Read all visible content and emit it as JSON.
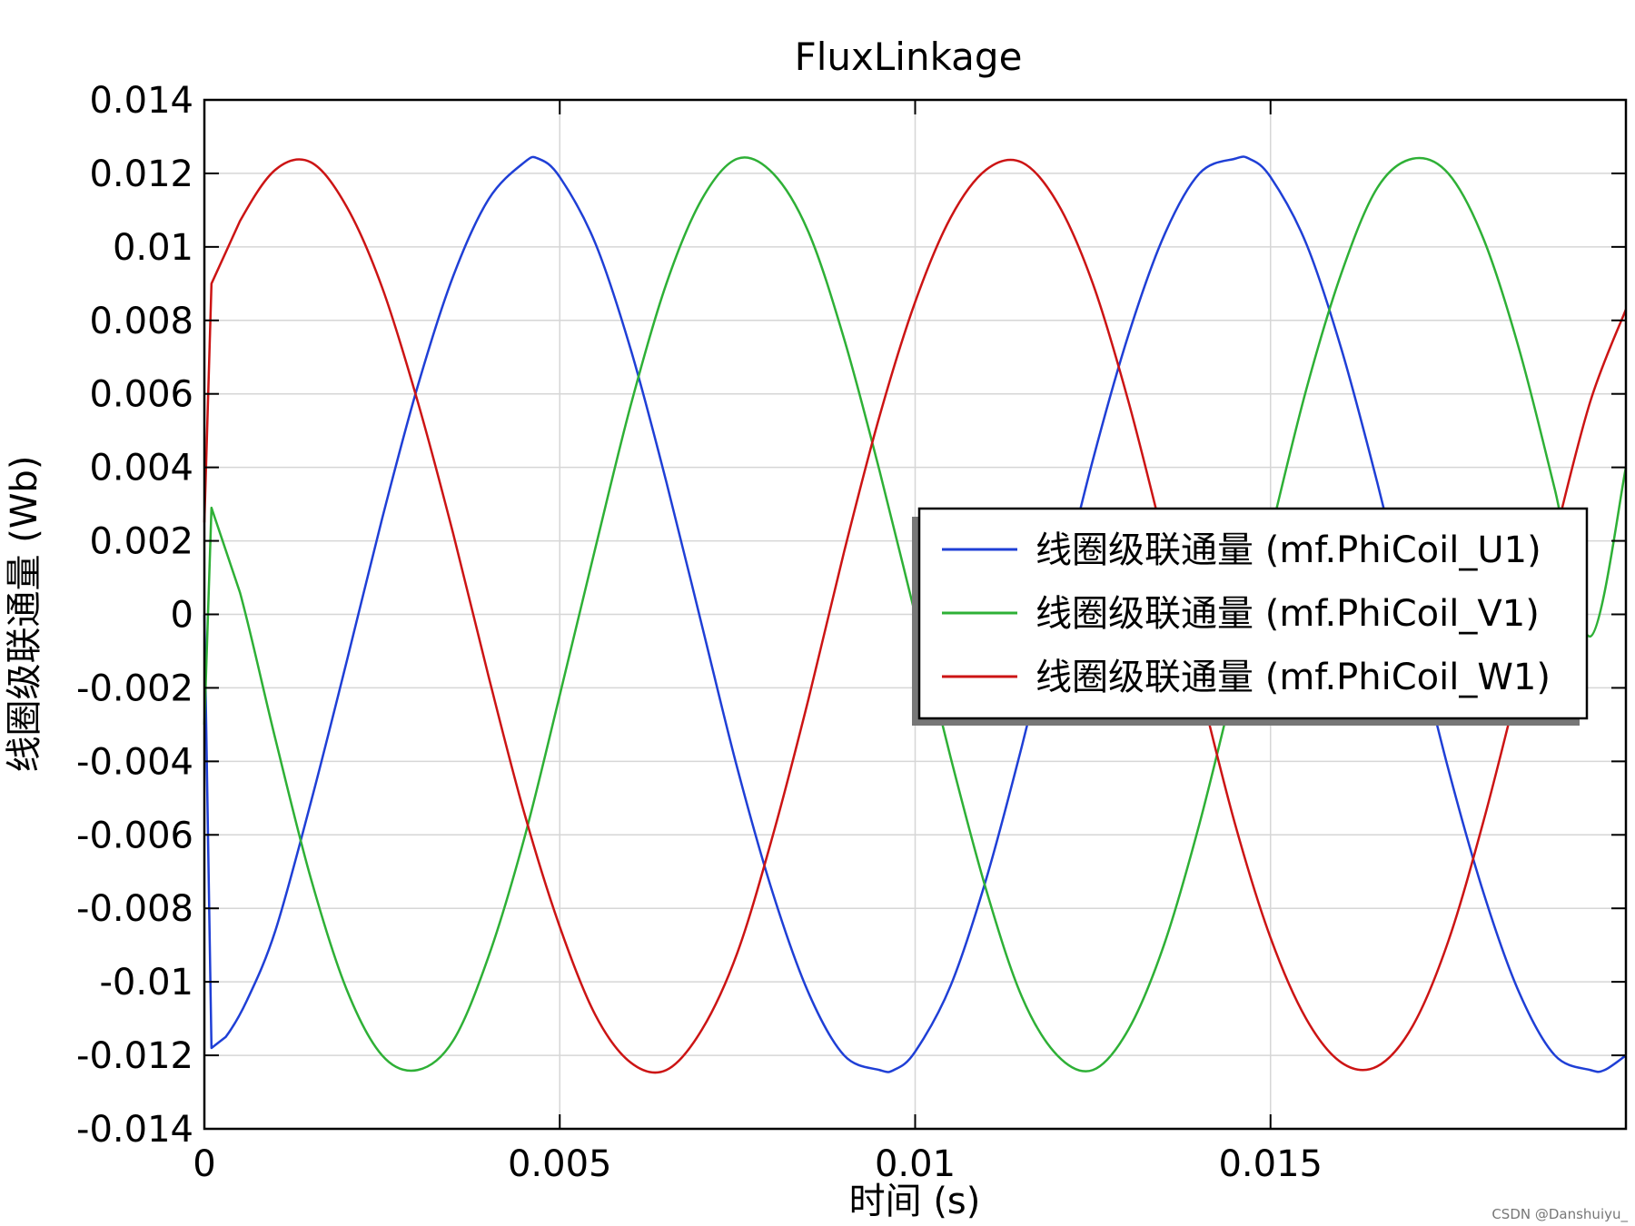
{
  "chart_data": {
    "type": "line",
    "title": "FluxLinkage",
    "xlabel": "时间 (s)",
    "ylabel": "线圈级联通量 (Wb)",
    "xlim": [
      0,
      0.02
    ],
    "ylim": [
      -0.014,
      0.014
    ],
    "x_ticks": [
      {
        "value": 0,
        "label": "0"
      },
      {
        "value": 0.005,
        "label": "0.005"
      },
      {
        "value": 0.01,
        "label": "0.01"
      },
      {
        "value": 0.015,
        "label": "0.015"
      }
    ],
    "y_ticks": [
      {
        "value": 0.014,
        "label": "0.014"
      },
      {
        "value": 0.012,
        "label": "0.012"
      },
      {
        "value": 0.01,
        "label": "0.01"
      },
      {
        "value": 0.008,
        "label": "0.008"
      },
      {
        "value": 0.006,
        "label": "0.006"
      },
      {
        "value": 0.004,
        "label": "0.004"
      },
      {
        "value": 0.002,
        "label": "0.002"
      },
      {
        "value": 0,
        "label": "0"
      },
      {
        "value": -0.002,
        "label": "-0.002"
      },
      {
        "value": -0.004,
        "label": "-0.004"
      },
      {
        "value": -0.006,
        "label": "-0.006"
      },
      {
        "value": -0.008,
        "label": "-0.008"
      },
      {
        "value": -0.01,
        "label": "-0.01"
      },
      {
        "value": -0.012,
        "label": "-0.012"
      },
      {
        "value": -0.014,
        "label": "-0.014"
      }
    ],
    "grid": true,
    "legend_position": "right-center",
    "series": [
      {
        "name": "线圈级联通量 (mf.PhiCoil_U1)",
        "color": "#1f3fd6",
        "x": [
          0,
          0.0001,
          0.0003,
          0.0006,
          0.001,
          0.0015,
          0.002,
          0.0025,
          0.003,
          0.0035,
          0.004,
          0.0045,
          0.0047,
          0.005,
          0.0055,
          0.006,
          0.0065,
          0.007,
          0.0075,
          0.008,
          0.0085,
          0.009,
          0.0095,
          0.0097,
          0.01,
          0.0105,
          0.011,
          0.0115,
          0.012,
          0.0125,
          0.013,
          0.0135,
          0.014,
          0.0145,
          0.0147,
          0.015,
          0.0155,
          0.016,
          0.0165,
          0.017,
          0.0175,
          0.018,
          0.0185,
          0.019,
          0.0195,
          0.0197,
          0.02
        ],
        "y": [
          0,
          -0.0118,
          -0.0115,
          -0.0105,
          -0.0086,
          -0.0051,
          -0.0013,
          0.0026,
          0.0062,
          0.0092,
          0.0113,
          0.0123,
          0.0124,
          0.0119,
          0.0101,
          0.0072,
          0.0036,
          -0.0003,
          -0.0042,
          -0.0076,
          -0.0103,
          -0.012,
          -0.0124,
          -0.0124,
          -0.0119,
          -0.0101,
          -0.0072,
          -0.0036,
          0.0003,
          0.0042,
          0.0076,
          0.0103,
          0.012,
          0.0124,
          0.0124,
          0.0119,
          0.0101,
          0.0072,
          0.0036,
          -0.0003,
          -0.0042,
          -0.0076,
          -0.0103,
          -0.012,
          -0.0124,
          -0.0124,
          -0.012
        ]
      },
      {
        "name": "线圈级联通量 (mf.PhiCoil_V1)",
        "color": "#2eb036",
        "x": [
          0,
          0.0001,
          0.0005,
          0.001,
          0.0015,
          0.002,
          0.0025,
          0.003,
          0.0035,
          0.004,
          0.0045,
          0.005,
          0.0055,
          0.006,
          0.0065,
          0.007,
          0.0075,
          0.008,
          0.0085,
          0.009,
          0.0095,
          0.01,
          0.0105,
          0.011,
          0.0115,
          0.012,
          0.0125,
          0.013,
          0.0135,
          0.014,
          0.0145,
          0.015,
          0.0155,
          0.016,
          0.0165,
          0.017,
          0.0175,
          0.018,
          0.0185,
          0.019,
          0.0195,
          0.02
        ],
        "y": [
          -0.003,
          0.0029,
          0.0006,
          -0.0034,
          -0.0072,
          -0.0102,
          -0.012,
          -0.0124,
          -0.0116,
          -0.0093,
          -0.0061,
          -0.0022,
          0.0018,
          0.0057,
          0.009,
          0.0113,
          0.0124,
          0.012,
          0.0104,
          0.0075,
          0.0039,
          0.0,
          -0.0039,
          -0.0075,
          -0.0104,
          -0.012,
          -0.0124,
          -0.0113,
          -0.009,
          -0.0057,
          -0.0018,
          0.0022,
          0.0061,
          0.0093,
          0.0116,
          0.0124,
          0.012,
          0.0102,
          0.0072,
          0.0034,
          -0.0006,
          0.004
        ]
      },
      {
        "name": "线圈级联通量 (mf.PhiCoil_W1)",
        "color": "#cc1414",
        "x": [
          0,
          0.0001,
          0.0005,
          0.001,
          0.0015,
          0.002,
          0.0025,
          0.003,
          0.0035,
          0.004,
          0.0045,
          0.005,
          0.0055,
          0.006,
          0.0065,
          0.007,
          0.0075,
          0.008,
          0.0085,
          0.009,
          0.0095,
          0.01,
          0.0105,
          0.011,
          0.0115,
          0.012,
          0.0125,
          0.013,
          0.0135,
          0.014,
          0.0145,
          0.015,
          0.0155,
          0.016,
          0.0165,
          0.017,
          0.0175,
          0.018,
          0.0185,
          0.019,
          0.0195,
          0.02
        ],
        "y": [
          0.0025,
          0.009,
          0.0107,
          0.0121,
          0.0123,
          0.0111,
          0.0089,
          0.0058,
          0.0022,
          -0.0017,
          -0.0054,
          -0.0085,
          -0.0109,
          -0.0122,
          -0.0124,
          -0.0113,
          -0.0092,
          -0.006,
          -0.0023,
          0.0017,
          0.0054,
          0.0085,
          0.0108,
          0.0121,
          0.0123,
          0.0112,
          0.009,
          0.0058,
          0.002,
          -0.0019,
          -0.0057,
          -0.0088,
          -0.011,
          -0.0122,
          -0.0123,
          -0.0112,
          -0.0089,
          -0.0056,
          -0.0018,
          0.0021,
          0.0058,
          0.0083
        ]
      }
    ]
  },
  "watermark": "CSDN @Danshuiyu_"
}
